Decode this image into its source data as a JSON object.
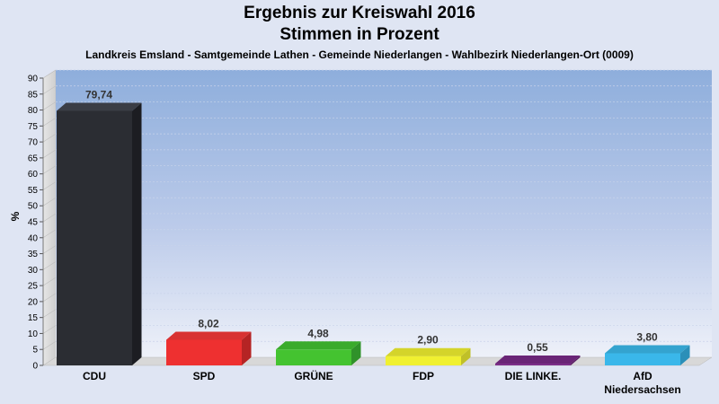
{
  "chart_data": {
    "type": "bar",
    "title": "Ergebnis zur Kreiswahl 2016",
    "title2": "Stimmen in Prozent",
    "subtitle": "Landkreis Emsland - Samtgemeinde Lathen - Gemeinde Niederlangen - Wahlbezirk Niederlangen-Ort (0009)",
    "ylabel": "%",
    "ylim": [
      0,
      90
    ],
    "yticks": [
      0,
      5,
      10,
      15,
      20,
      25,
      30,
      35,
      40,
      45,
      50,
      55,
      60,
      65,
      70,
      75,
      80,
      85,
      90
    ],
    "categories": [
      [
        "CDU"
      ],
      [
        "SPD"
      ],
      [
        "GRÜNE"
      ],
      [
        "FDP"
      ],
      [
        "DIE LINKE."
      ],
      [
        "AfD",
        "Niedersachsen"
      ]
    ],
    "values": [
      79.74,
      8.02,
      4.98,
      2.9,
      0.55,
      3.8
    ],
    "value_labels": [
      "79,74",
      "8,02",
      "4,98",
      "2,90",
      "0,55",
      "3,80"
    ],
    "colors": [
      "#2b2d33",
      "#ee3030",
      "#44c330",
      "#f0f030",
      "#7a2a86",
      "#3ab7ea"
    ],
    "side_colors": [
      "#1c1d22",
      "#b52424",
      "#30922a",
      "#c0c028",
      "#5a1f64",
      "#2b8fb8"
    ],
    "top_colors": [
      "#3a3d45",
      "#d83232",
      "#3aab2c",
      "#d4d42a",
      "#6a2576",
      "#34a3cf"
    ],
    "grid": true
  }
}
